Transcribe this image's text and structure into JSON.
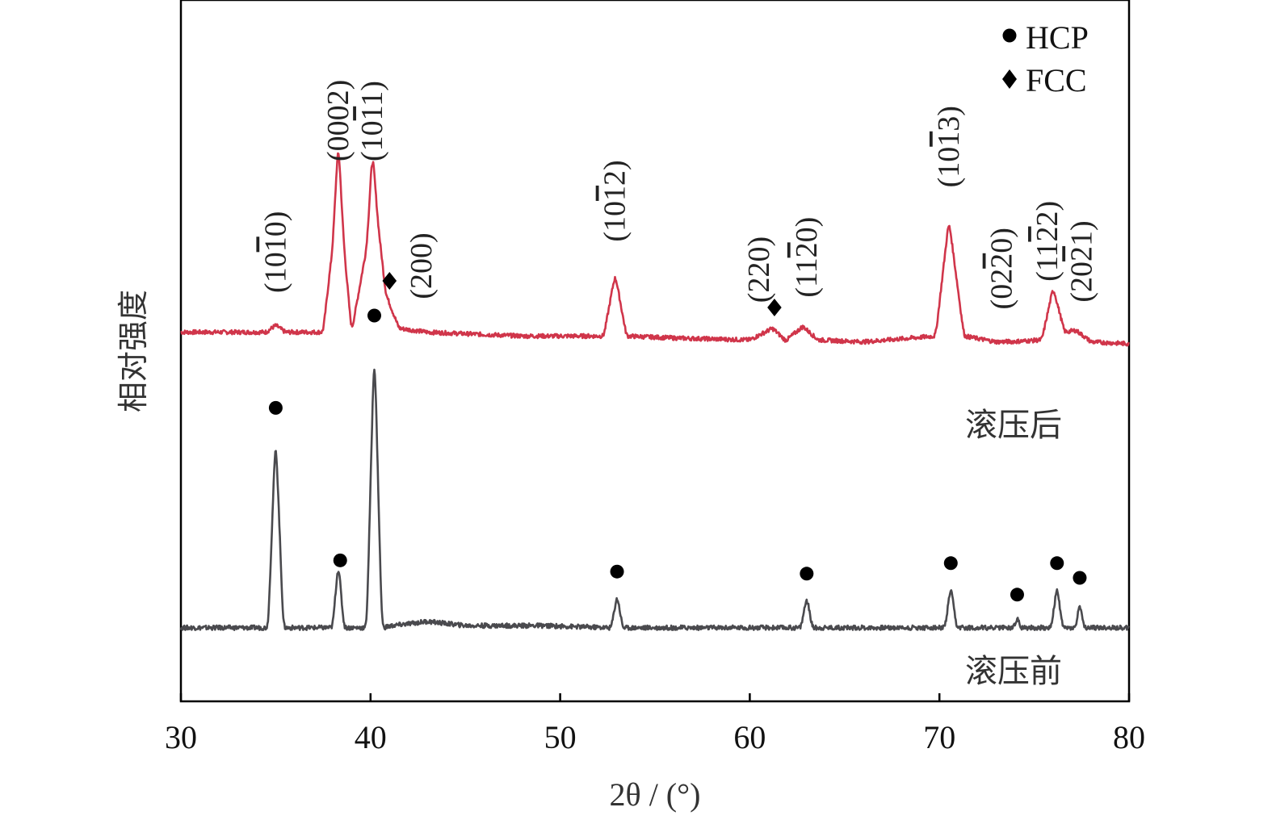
{
  "chart_data": {
    "type": "line",
    "title": "",
    "xlabel": "2θ / (°)",
    "ylabel": "相对强度",
    "xlim": [
      30,
      80
    ],
    "xticks": [
      "30",
      "40",
      "50",
      "60",
      "70",
      "80"
    ],
    "grid": false,
    "legend": {
      "placement": "top-right",
      "entries": [
        {
          "name": "HCP",
          "marker": "circle"
        },
        {
          "name": "FCC",
          "marker": "diamond"
        }
      ]
    },
    "series": [
      {
        "name": "滚压后",
        "color": "#d0354a",
        "x": [
          30.0,
          33.0,
          34.5,
          35.0,
          35.5,
          37.5,
          38.0,
          38.3,
          38.6,
          39.0,
          39.8,
          40.1,
          40.4,
          40.8,
          41.5,
          43.0,
          48.0,
          52.3,
          52.9,
          53.5,
          56.0,
          60.0,
          61.2,
          61.9,
          62.8,
          63.6,
          66.0,
          69.8,
          70.5,
          71.3,
          73.0,
          74.0,
          75.4,
          76.0,
          76.6,
          77.2,
          78.0,
          80.0
        ],
        "y": [
          8,
          8,
          8,
          9.8,
          8,
          8,
          30,
          58,
          30,
          8,
          30,
          55,
          36,
          18,
          9,
          8,
          7,
          7,
          23,
          7,
          6.5,
          6,
          9,
          5.8,
          9.5,
          6,
          5.5,
          7,
          37,
          7,
          5.5,
          5.6,
          6,
          19.5,
          8,
          8.5,
          5.5,
          5
        ]
      },
      {
        "name": "滚压前",
        "color": "#4a4a4e",
        "x": [
          30.0,
          34.6,
          35.0,
          35.4,
          38.0,
          38.3,
          38.6,
          39.8,
          40.2,
          40.6,
          41.2,
          43.0,
          45.0,
          49.0,
          52.7,
          53.0,
          53.3,
          60.0,
          62.7,
          63.0,
          63.3,
          70.3,
          70.6,
          70.9,
          73.9,
          74.1,
          74.3,
          75.9,
          76.2,
          76.5,
          77.2,
          77.4,
          77.6,
          80.0
        ],
        "y": [
          1,
          1,
          48,
          1,
          1,
          17,
          1,
          1,
          70,
          1,
          1.5,
          2.5,
          1.5,
          1.5,
          1,
          9,
          1,
          1,
          1,
          8.5,
          1,
          1,
          11,
          1,
          1,
          3.5,
          1,
          1,
          11,
          1,
          1,
          7.5,
          1,
          1
        ]
      }
    ],
    "peak_markers": [
      {
        "series": "滚压前",
        "phase": "HCP",
        "x": 35.0
      },
      {
        "series": "滚压前",
        "phase": "HCP",
        "x": 38.4
      },
      {
        "series": "滚压前",
        "phase": "HCP",
        "x": 40.2
      },
      {
        "series": "滚压前",
        "phase": "HCP",
        "x": 53.0
      },
      {
        "series": "滚压前",
        "phase": "HCP",
        "x": 63.0
      },
      {
        "series": "滚压前",
        "phase": "HCP",
        "x": 70.6
      },
      {
        "series": "滚压前",
        "phase": "HCP",
        "x": 74.1
      },
      {
        "series": "滚压前",
        "phase": "HCP",
        "x": 76.2
      },
      {
        "series": "滚压前",
        "phase": "HCP",
        "x": 77.4
      },
      {
        "series": "滚压后",
        "phase": "FCC",
        "x": 41.0
      },
      {
        "series": "滚压后",
        "phase": "FCC",
        "x": 61.3
      }
    ],
    "peak_labels": [
      {
        "x": 35.0,
        "text": "(10",
        "bar": "1",
        "tail": "0)"
      },
      {
        "x": 38.3,
        "text": "(0002)",
        "bar": "",
        "tail": ""
      },
      {
        "x": 40.1,
        "text": "(10",
        "bar": "1",
        "tail": "1)"
      },
      {
        "x": 42.7,
        "text": "(200)",
        "bar": "",
        "tail": ""
      },
      {
        "x": 52.9,
        "text": "(10",
        "bar": "1",
        "tail": "2)"
      },
      {
        "x": 60.5,
        "text": "(220)",
        "bar": "",
        "tail": ""
      },
      {
        "x": 63.0,
        "text": "(11",
        "bar": "2",
        "tail": "0)"
      },
      {
        "x": 70.5,
        "text": "(10",
        "bar": "1",
        "tail": "3)"
      },
      {
        "x": 73.3,
        "text": "(02",
        "bar": "2",
        "tail": "0)"
      },
      {
        "x": 75.7,
        "text": "(11",
        "bar": "2",
        "tail": "2)"
      },
      {
        "x": 77.5,
        "text": "(20",
        "bar": "2",
        "tail": "1)"
      }
    ]
  }
}
